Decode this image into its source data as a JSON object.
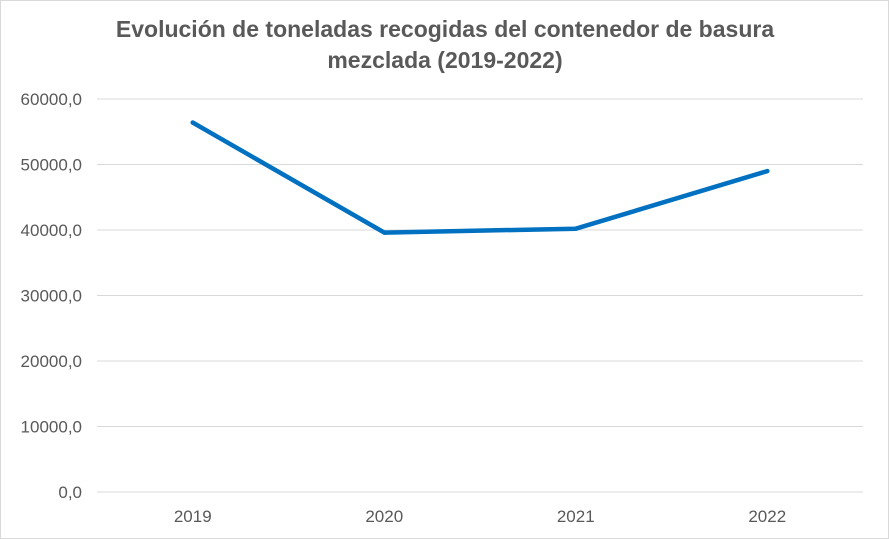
{
  "chart_data": {
    "type": "line",
    "title": "Evolución de toneladas recogidas del contenedor de basura mezclada (2019-2022)",
    "categories": [
      "2019",
      "2020",
      "2021",
      "2022"
    ],
    "series": [
      {
        "values": [
          56400,
          39600,
          40200,
          49000
        ],
        "color": "#0070c0"
      }
    ],
    "ylim": [
      0,
      60000
    ],
    "yticks": [
      0,
      10000,
      20000,
      30000,
      40000,
      50000,
      60000
    ],
    "ytick_labels": [
      "0,0",
      "10000,0",
      "20000,0",
      "30000,0",
      "40000,0",
      "50000,0",
      "60000,0"
    ],
    "gridlines": "horizontal",
    "legend": "none"
  }
}
